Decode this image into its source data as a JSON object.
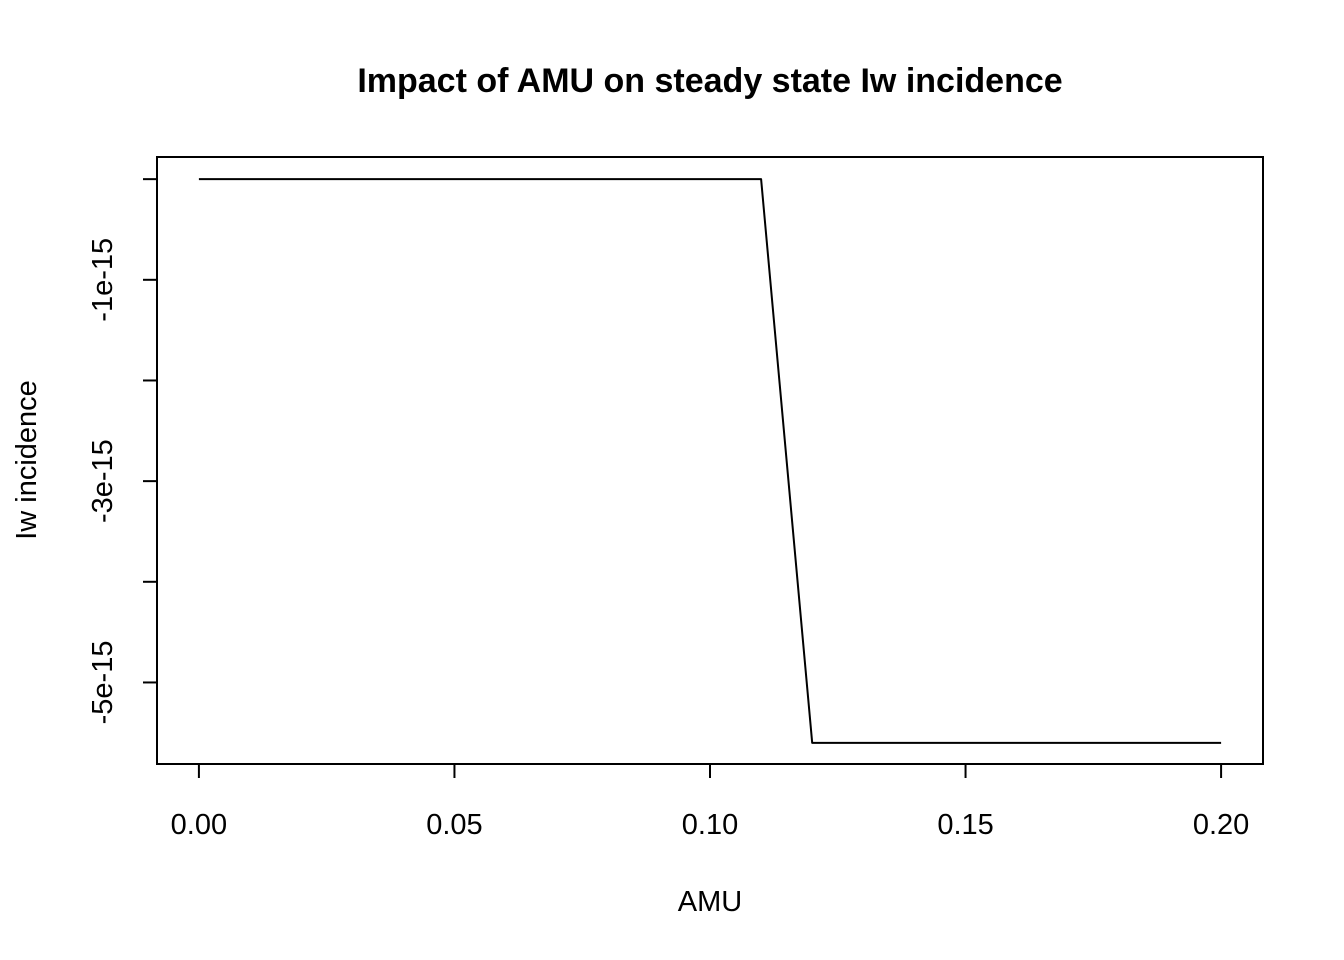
{
  "chart_data": {
    "type": "line",
    "title": "Impact of AMU on steady state Iw incidence",
    "xlabel": "AMU",
    "ylabel": "Iw incidence",
    "xlim": [
      -0.0082,
      0.2082
    ],
    "ylim": [
      -5.81e-15,
      2.2e-16
    ],
    "x_ticks": [
      0.0,
      0.05,
      0.1,
      0.15,
      0.2
    ],
    "x_tick_labels": [
      "0.00",
      "0.05",
      "0.10",
      "0.15",
      "0.20"
    ],
    "y_ticks": [
      0,
      -1e-15,
      -2e-15,
      -3e-15,
      -4e-15,
      -5e-15
    ],
    "y_tick_labels": [
      "",
      "-1e-15",
      "",
      "-3e-15",
      "",
      "-5e-15"
    ],
    "grid": false,
    "series": [
      {
        "color": "#000000",
        "x": [
          0.0,
          0.01,
          0.02,
          0.03,
          0.04,
          0.05,
          0.06,
          0.07,
          0.08,
          0.09,
          0.1,
          0.11,
          0.12,
          0.13,
          0.14,
          0.15,
          0.16,
          0.17,
          0.18,
          0.19,
          0.2
        ],
        "y": [
          0,
          0,
          0,
          0,
          0,
          0,
          0,
          0,
          0,
          0,
          0,
          0,
          -5.6e-15,
          -5.6e-15,
          -5.6e-15,
          -5.6e-15,
          -5.6e-15,
          -5.6e-15,
          -5.6e-15,
          -5.6e-15,
          -5.6e-15
        ]
      }
    ]
  }
}
